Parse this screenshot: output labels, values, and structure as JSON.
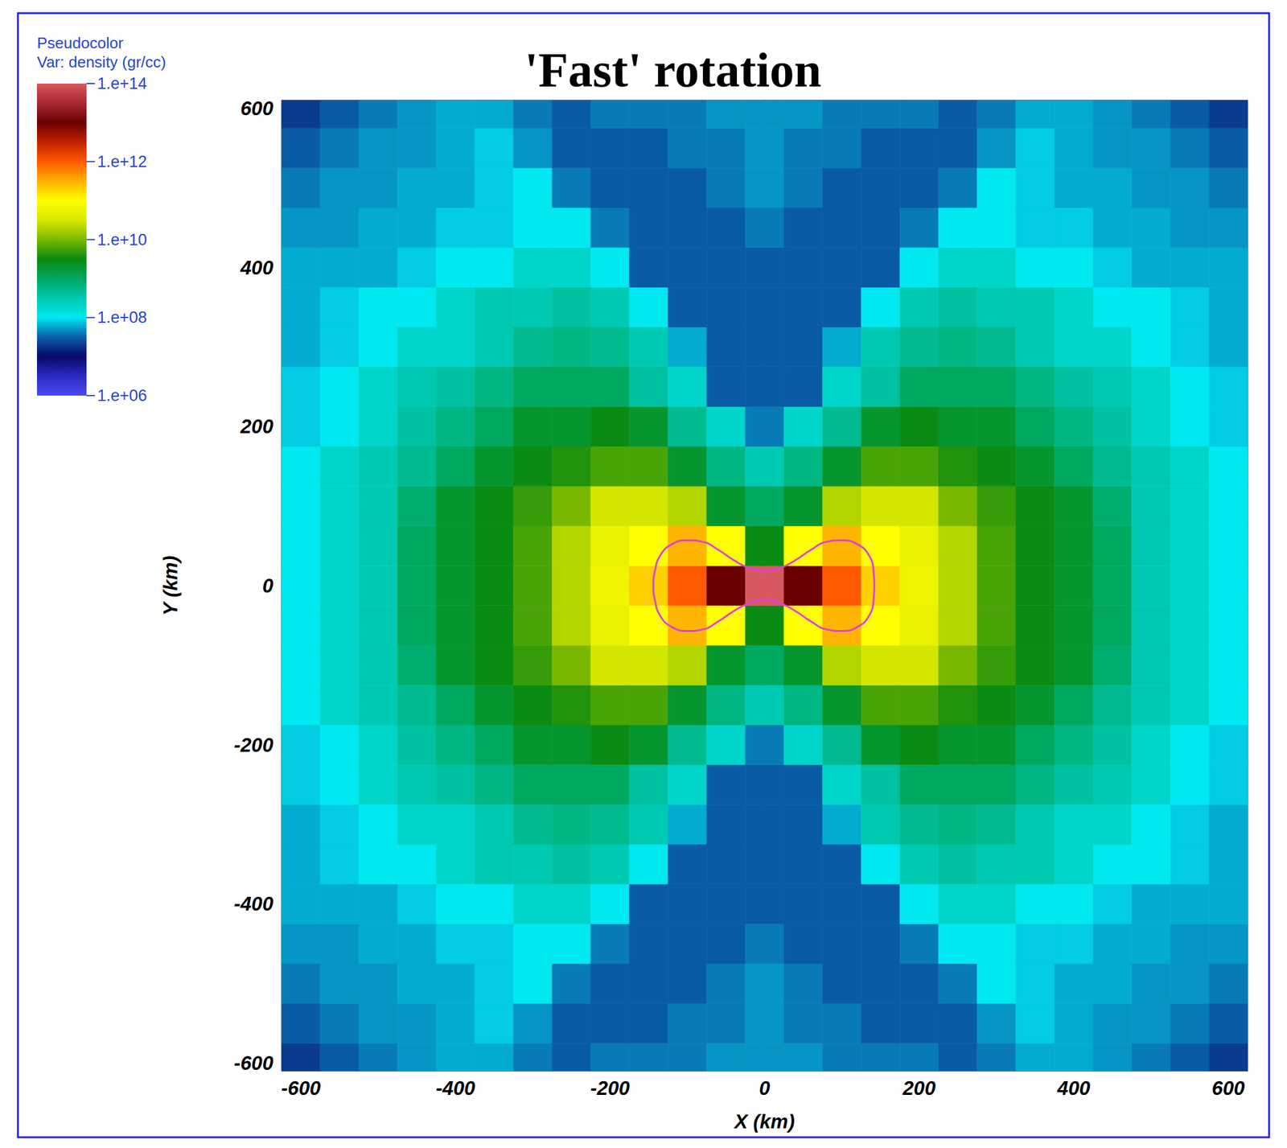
{
  "chart_data": {
    "type": "heatmap",
    "title": "'Fast' rotation",
    "x_label": "X (km)",
    "y_label": "Y (km)",
    "xlim": [
      -625,
      625
    ],
    "ylim": [
      -610,
      610
    ],
    "xticks": [
      -600,
      -400,
      -200,
      0,
      200,
      400,
      600
    ],
    "yticks": [
      -600,
      -400,
      -200,
      0,
      200,
      400,
      600
    ],
    "grid": false,
    "colorbar": {
      "title": [
        "Pseudocolor",
        "Var: density (gr/cc)"
      ],
      "range": [
        1000000.0,
        100000000000000.0
      ],
      "log": true,
      "ticks": [
        {
          "value": 1000000.0,
          "label": "1.e+06"
        },
        {
          "value": 100000000.0,
          "label": "1.e+08"
        },
        {
          "value": 10000000000.0,
          "label": "1.e+10"
        },
        {
          "value": 1000000000000.0,
          "label": "1.e+12"
        },
        {
          "value": 100000000000000.0,
          "label": "1.e+14"
        }
      ]
    },
    "x": [
      -600,
      -550,
      -500,
      -450,
      -400,
      -350,
      -300,
      -250,
      -200,
      -150,
      -100,
      -50,
      0,
      50,
      100,
      150,
      200,
      250,
      300,
      350,
      400,
      450,
      500,
      550,
      600
    ],
    "y": [
      -600,
      -550,
      -500,
      -450,
      -400,
      -350,
      -300,
      -250,
      -200,
      -150,
      -100,
      -50,
      0,
      50,
      100,
      150,
      200,
      250,
      300,
      350,
      400,
      450,
      500,
      550,
      600
    ],
    "cells": [
      [
        20000000.0,
        30000000.0,
        40000000.0,
        50000000.0,
        60000000.0,
        60000000.0,
        40000000.0,
        30000000.0,
        40000000.0,
        40000000.0,
        40000000.0,
        50000000.0,
        50000000.0,
        50000000.0,
        40000000.0,
        40000000.0,
        40000000.0,
        30000000.0,
        40000000.0,
        60000000.0,
        60000000.0,
        50000000.0,
        40000000.0,
        30000000.0,
        20000000.0
      ],
      [
        30000000.0,
        40000000.0,
        50000000.0,
        50000000.0,
        60000000.0,
        80000000.0,
        50000000.0,
        30000000.0,
        30000000.0,
        30000000.0,
        40000000.0,
        40000000.0,
        50000000.0,
        40000000.0,
        40000000.0,
        30000000.0,
        30000000.0,
        30000000.0,
        50000000.0,
        80000000.0,
        60000000.0,
        50000000.0,
        50000000.0,
        40000000.0,
        30000000.0
      ],
      [
        40000000.0,
        50000000.0,
        50000000.0,
        60000000.0,
        60000000.0,
        80000000.0,
        100000000.0,
        40000000.0,
        30000000.0,
        30000000.0,
        30000000.0,
        40000000.0,
        50000000.0,
        40000000.0,
        30000000.0,
        30000000.0,
        30000000.0,
        40000000.0,
        100000000.0,
        80000000.0,
        60000000.0,
        60000000.0,
        50000000.0,
        50000000.0,
        40000000.0
      ],
      [
        50000000.0,
        50000000.0,
        60000000.0,
        60000000.0,
        80000000.0,
        80000000.0,
        100000000.0,
        100000000.0,
        40000000.0,
        30000000.0,
        30000000.0,
        30000000.0,
        40000000.0,
        30000000.0,
        30000000.0,
        30000000.0,
        40000000.0,
        100000000.0,
        100000000.0,
        80000000.0,
        80000000.0,
        60000000.0,
        60000000.0,
        50000000.0,
        50000000.0
      ],
      [
        60000000.0,
        60000000.0,
        60000000.0,
        80000000.0,
        100000000.0,
        100000000.0,
        200000000.0,
        200000000.0,
        100000000.0,
        30000000.0,
        30000000.0,
        30000000.0,
        30000000.0,
        30000000.0,
        30000000.0,
        30000000.0,
        100000000.0,
        200000000.0,
        200000000.0,
        100000000.0,
        100000000.0,
        80000000.0,
        60000000.0,
        60000000.0,
        60000000.0
      ],
      [
        60000000.0,
        80000000.0,
        100000000.0,
        100000000.0,
        200000000.0,
        300000000.0,
        300000000.0,
        400000000.0,
        300000000.0,
        100000000.0,
        30000000.0,
        30000000.0,
        30000000.0,
        30000000.0,
        30000000.0,
        100000000.0,
        300000000.0,
        400000000.0,
        300000000.0,
        300000000.0,
        200000000.0,
        100000000.0,
        100000000.0,
        80000000.0,
        60000000.0
      ],
      [
        60000000.0,
        80000000.0,
        100000000.0,
        200000000.0,
        200000000.0,
        300000000.0,
        500000000.0,
        600000000.0,
        500000000.0,
        300000000.0,
        60000000.0,
        30000000.0,
        30000000.0,
        30000000.0,
        60000000.0,
        300000000.0,
        500000000.0,
        600000000.0,
        500000000.0,
        300000000.0,
        200000000.0,
        200000000.0,
        100000000.0,
        80000000.0,
        60000000.0
      ],
      [
        80000000.0,
        100000000.0,
        200000000.0,
        300000000.0,
        400000000.0,
        600000000.0,
        1000000000.0,
        1000000000.0,
        1000000000.0,
        400000000.0,
        200000000.0,
        30000000.0,
        30000000.0,
        30000000.0,
        200000000.0,
        400000000.0,
        1000000000.0,
        1000000000.0,
        1000000000.0,
        600000000.0,
        400000000.0,
        300000000.0,
        200000000.0,
        100000000.0,
        80000000.0
      ],
      [
        80000000.0,
        100000000.0,
        200000000.0,
        400000000.0,
        600000000.0,
        1000000000.0,
        2000000000.0,
        2000000000.0,
        3000000000.0,
        2000000000.0,
        500000000.0,
        200000000.0,
        40000000.0,
        200000000.0,
        500000000.0,
        2000000000.0,
        3000000000.0,
        2000000000.0,
        2000000000.0,
        1000000000.0,
        600000000.0,
        400000000.0,
        200000000.0,
        100000000.0,
        80000000.0
      ],
      [
        100000000.0,
        200000000.0,
        300000000.0,
        500000000.0,
        1000000000.0,
        2000000000.0,
        3000000000.0,
        4000000000.0,
        6000000000.0,
        6000000000.0,
        2000000000.0,
        600000000.0,
        300000000.0,
        600000000.0,
        2000000000.0,
        6000000000.0,
        6000000000.0,
        4000000000.0,
        3000000000.0,
        2000000000.0,
        1000000000.0,
        500000000.0,
        300000000.0,
        200000000.0,
        100000000.0
      ],
      [
        100000000.0,
        200000000.0,
        300000000.0,
        800000000.0,
        2000000000.0,
        3000000000.0,
        5000000000.0,
        10000000000.0,
        30000000000.0,
        30000000000.0,
        20000000000.0,
        2000000000.0,
        1000000000.0,
        2000000000.0,
        20000000000.0,
        30000000000.0,
        30000000000.0,
        10000000000.0,
        5000000000.0,
        3000000000.0,
        2000000000.0,
        800000000.0,
        300000000.0,
        200000000.0,
        100000000.0
      ],
      [
        100000000.0,
        200000000.0,
        300000000.0,
        1000000000.0,
        2000000000.0,
        3000000000.0,
        6000000000.0,
        20000000000.0,
        50000000000.0,
        100000000000.0,
        300000000000.0,
        100000000000.0,
        3000000000.0,
        100000000000.0,
        300000000000.0,
        100000000000.0,
        50000000000.0,
        20000000000.0,
        6000000000.0,
        3000000000.0,
        2000000000.0,
        1000000000.0,
        300000000.0,
        200000000.0,
        100000000.0
      ],
      [
        100000000.0,
        200000000.0,
        300000000.0,
        1000000000.0,
        2000000000.0,
        3000000000.0,
        6000000000.0,
        20000000000.0,
        60000000000.0,
        200000000000.0,
        1000000000000.0,
        10000000000000.0,
        100000000000000.0,
        10000000000000.0,
        1000000000000.0,
        200000000000.0,
        60000000000.0,
        20000000000.0,
        6000000000.0,
        3000000000.0,
        2000000000.0,
        1000000000.0,
        300000000.0,
        200000000.0,
        100000000.0
      ],
      [
        100000000.0,
        200000000.0,
        300000000.0,
        1000000000.0,
        2000000000.0,
        3000000000.0,
        6000000000.0,
        20000000000.0,
        50000000000.0,
        100000000000.0,
        300000000000.0,
        100000000000.0,
        3000000000.0,
        100000000000.0,
        300000000000.0,
        100000000000.0,
        50000000000.0,
        20000000000.0,
        6000000000.0,
        3000000000.0,
        2000000000.0,
        1000000000.0,
        300000000.0,
        200000000.0,
        100000000.0
      ],
      [
        100000000.0,
        200000000.0,
        300000000.0,
        800000000.0,
        2000000000.0,
        3000000000.0,
        5000000000.0,
        10000000000.0,
        30000000000.0,
        30000000000.0,
        20000000000.0,
        2000000000.0,
        1000000000.0,
        2000000000.0,
        20000000000.0,
        30000000000.0,
        30000000000.0,
        10000000000.0,
        5000000000.0,
        3000000000.0,
        2000000000.0,
        800000000.0,
        300000000.0,
        200000000.0,
        100000000.0
      ],
      [
        100000000.0,
        200000000.0,
        300000000.0,
        500000000.0,
        1000000000.0,
        2000000000.0,
        3000000000.0,
        4000000000.0,
        6000000000.0,
        6000000000.0,
        2000000000.0,
        600000000.0,
        300000000.0,
        600000000.0,
        2000000000.0,
        6000000000.0,
        6000000000.0,
        4000000000.0,
        3000000000.0,
        2000000000.0,
        1000000000.0,
        500000000.0,
        300000000.0,
        200000000.0,
        100000000.0
      ],
      [
        80000000.0,
        100000000.0,
        200000000.0,
        400000000.0,
        600000000.0,
        1000000000.0,
        2000000000.0,
        2000000000.0,
        3000000000.0,
        2000000000.0,
        500000000.0,
        200000000.0,
        40000000.0,
        200000000.0,
        500000000.0,
        2000000000.0,
        3000000000.0,
        2000000000.0,
        2000000000.0,
        1000000000.0,
        600000000.0,
        400000000.0,
        200000000.0,
        100000000.0,
        80000000.0
      ],
      [
        80000000.0,
        100000000.0,
        200000000.0,
        300000000.0,
        400000000.0,
        600000000.0,
        1000000000.0,
        1000000000.0,
        1000000000.0,
        400000000.0,
        200000000.0,
        30000000.0,
        30000000.0,
        30000000.0,
        200000000.0,
        400000000.0,
        1000000000.0,
        1000000000.0,
        1000000000.0,
        600000000.0,
        400000000.0,
        300000000.0,
        200000000.0,
        100000000.0,
        80000000.0
      ],
      [
        60000000.0,
        80000000.0,
        100000000.0,
        200000000.0,
        200000000.0,
        300000000.0,
        500000000.0,
        600000000.0,
        500000000.0,
        300000000.0,
        60000000.0,
        30000000.0,
        30000000.0,
        30000000.0,
        60000000.0,
        300000000.0,
        500000000.0,
        600000000.0,
        500000000.0,
        300000000.0,
        200000000.0,
        200000000.0,
        100000000.0,
        80000000.0,
        60000000.0
      ],
      [
        60000000.0,
        80000000.0,
        100000000.0,
        100000000.0,
        200000000.0,
        300000000.0,
        300000000.0,
        400000000.0,
        300000000.0,
        100000000.0,
        30000000.0,
        30000000.0,
        30000000.0,
        30000000.0,
        30000000.0,
        100000000.0,
        300000000.0,
        400000000.0,
        300000000.0,
        300000000.0,
        200000000.0,
        100000000.0,
        100000000.0,
        80000000.0,
        60000000.0
      ],
      [
        60000000.0,
        60000000.0,
        60000000.0,
        80000000.0,
        100000000.0,
        100000000.0,
        200000000.0,
        200000000.0,
        100000000.0,
        30000000.0,
        30000000.0,
        30000000.0,
        30000000.0,
        30000000.0,
        30000000.0,
        30000000.0,
        100000000.0,
        200000000.0,
        200000000.0,
        100000000.0,
        100000000.0,
        80000000.0,
        60000000.0,
        60000000.0,
        60000000.0
      ],
      [
        50000000.0,
        50000000.0,
        60000000.0,
        60000000.0,
        80000000.0,
        80000000.0,
        100000000.0,
        100000000.0,
        40000000.0,
        30000000.0,
        30000000.0,
        30000000.0,
        40000000.0,
        30000000.0,
        30000000.0,
        30000000.0,
        40000000.0,
        100000000.0,
        100000000.0,
        80000000.0,
        80000000.0,
        60000000.0,
        60000000.0,
        50000000.0,
        50000000.0
      ],
      [
        40000000.0,
        50000000.0,
        50000000.0,
        60000000.0,
        60000000.0,
        80000000.0,
        100000000.0,
        40000000.0,
        30000000.0,
        30000000.0,
        30000000.0,
        40000000.0,
        50000000.0,
        40000000.0,
        30000000.0,
        30000000.0,
        30000000.0,
        40000000.0,
        100000000.0,
        80000000.0,
        60000000.0,
        60000000.0,
        50000000.0,
        50000000.0,
        40000000.0
      ],
      [
        30000000.0,
        40000000.0,
        50000000.0,
        50000000.0,
        60000000.0,
        80000000.0,
        50000000.0,
        30000000.0,
        30000000.0,
        30000000.0,
        40000000.0,
        40000000.0,
        50000000.0,
        40000000.0,
        40000000.0,
        30000000.0,
        30000000.0,
        30000000.0,
        50000000.0,
        80000000.0,
        60000000.0,
        50000000.0,
        50000000.0,
        40000000.0,
        30000000.0
      ],
      [
        20000000.0,
        30000000.0,
        40000000.0,
        50000000.0,
        60000000.0,
        60000000.0,
        40000000.0,
        30000000.0,
        40000000.0,
        40000000.0,
        40000000.0,
        50000000.0,
        50000000.0,
        50000000.0,
        40000000.0,
        40000000.0,
        40000000.0,
        30000000.0,
        40000000.0,
        60000000.0,
        60000000.0,
        50000000.0,
        40000000.0,
        30000000.0,
        20000000.0
      ]
    ],
    "contour": {
      "color": "#e03ce0",
      "x": [
        0,
        20,
        40,
        60,
        80,
        100,
        120,
        135,
        141,
        142,
        141,
        135,
        120,
        100,
        80,
        60,
        40,
        20,
        0,
        -20,
        -40,
        -60,
        -80,
        -100,
        -120,
        -135,
        -142,
        -144,
        -142,
        -135,
        -120,
        -100,
        -80,
        -60,
        -40,
        -20,
        0
      ],
      "y": [
        18,
        22,
        32,
        45,
        55,
        57,
        52,
        38,
        18,
        0,
        -18,
        -38,
        -52,
        -57,
        -55,
        -45,
        -32,
        -22,
        -18,
        -22,
        -32,
        -45,
        -55,
        -57,
        -52,
        -38,
        -18,
        0,
        18,
        38,
        52,
        57,
        55,
        45,
        32,
        22,
        18
      ]
    }
  }
}
